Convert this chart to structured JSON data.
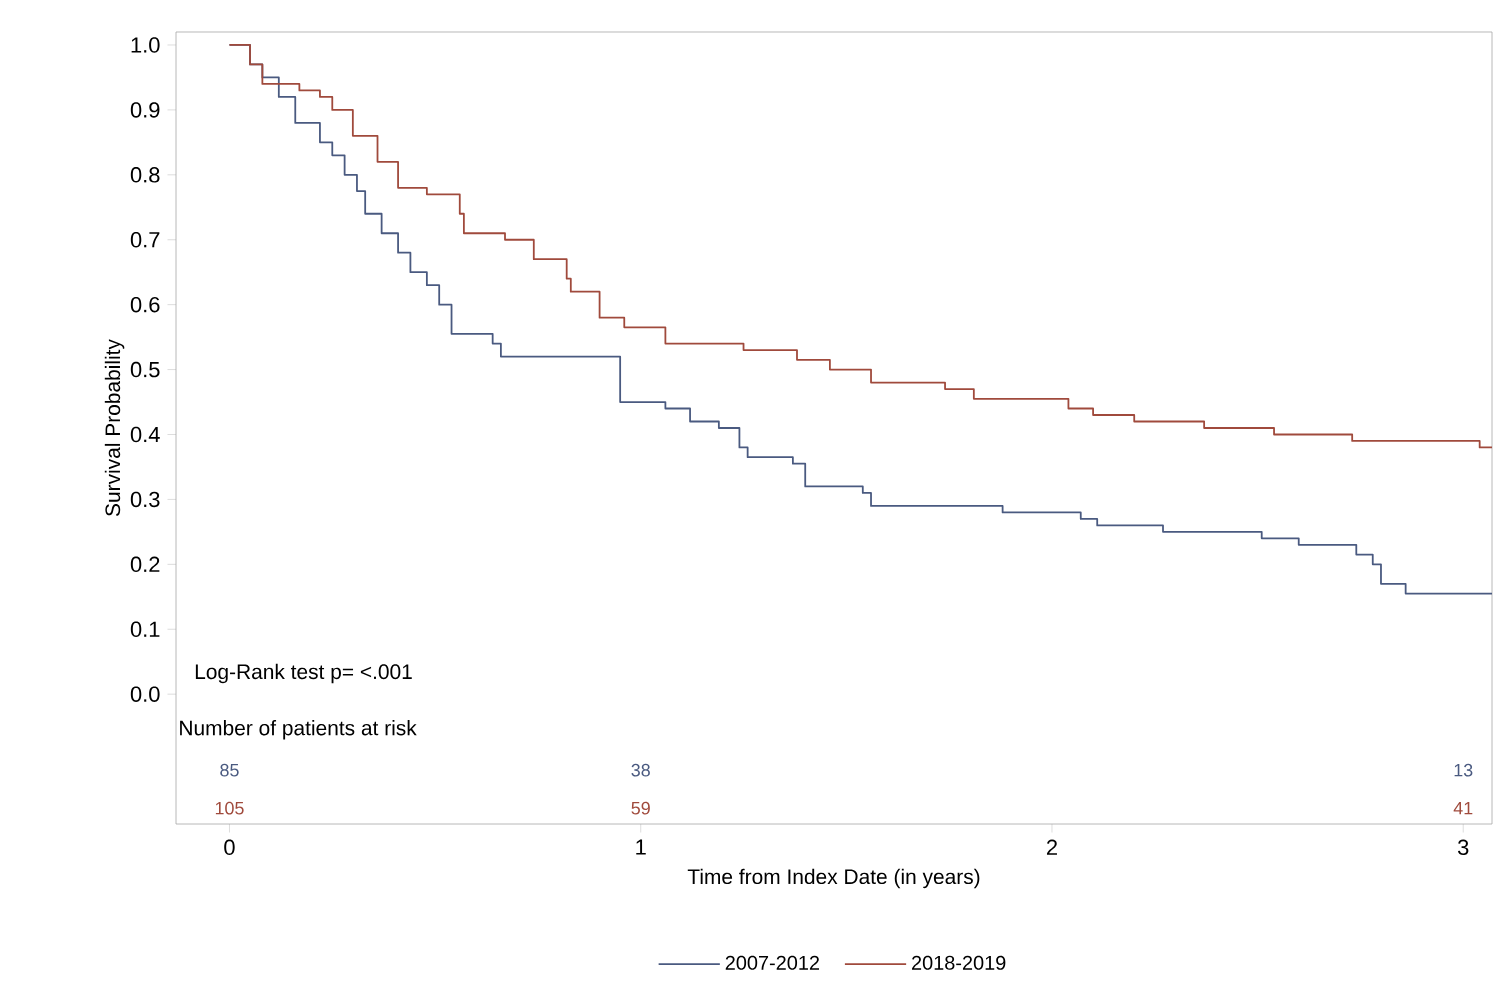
{
  "chart_data": {
    "type": "step",
    "xlabel": "Time from Index Date (in years)",
    "ylabel": "Survival Probability",
    "xlim": [
      -0.13,
      3.07
    ],
    "ylim": [
      -0.2,
      1.02
    ],
    "xticks": [
      0,
      1,
      2,
      3
    ],
    "yticks": [
      {
        "value": 0,
        "label": "0.0"
      },
      0.1,
      0.2,
      0.3,
      0.4,
      0.5,
      0.6,
      0.7,
      0.8,
      0.9,
      {
        "value": 1,
        "label": "1.0"
      }
    ],
    "grid": false,
    "legend": "bottom",
    "marker": "none",
    "line_style": "solid",
    "series": [
      {
        "name": "2007-2012",
        "color": "#4a5a80",
        "x": [
          0,
          0.05,
          0.08,
          0.12,
          0.16,
          0.22,
          0.25,
          0.28,
          0.31,
          0.33,
          0.37,
          0.41,
          0.44,
          0.48,
          0.51,
          0.54,
          0.64,
          0.66,
          0.95,
          1.06,
          1.12,
          1.19,
          1.24,
          1.26,
          1.37,
          1.4,
          1.54,
          1.56,
          1.88,
          2.07,
          2.11,
          2.27,
          2.51,
          2.6,
          2.74,
          2.78,
          2.8,
          2.86,
          3.07
        ],
        "values": [
          1.0,
          0.97,
          0.95,
          0.92,
          0.88,
          0.85,
          0.83,
          0.8,
          0.775,
          0.74,
          0.71,
          0.68,
          0.65,
          0.63,
          0.6,
          0.555,
          0.54,
          0.52,
          0.45,
          0.44,
          0.42,
          0.41,
          0.38,
          0.365,
          0.355,
          0.32,
          0.31,
          0.29,
          0.28,
          0.27,
          0.26,
          0.25,
          0.24,
          0.23,
          0.215,
          0.2,
          0.17,
          0.155,
          0.155
        ]
      },
      {
        "name": "2018-2019",
        "color": "#a04a3c",
        "x": [
          0,
          0.05,
          0.08,
          0.17,
          0.22,
          0.25,
          0.3,
          0.36,
          0.41,
          0.48,
          0.56,
          0.57,
          0.67,
          0.74,
          0.82,
          0.83,
          0.9,
          0.96,
          1.06,
          1.25,
          1.38,
          1.46,
          1.56,
          1.74,
          1.81,
          2.04,
          2.1,
          2.2,
          2.37,
          2.54,
          2.73,
          3.04,
          3.07
        ],
        "values": [
          1.0,
          0.97,
          0.94,
          0.93,
          0.92,
          0.9,
          0.86,
          0.82,
          0.78,
          0.77,
          0.74,
          0.71,
          0.7,
          0.67,
          0.64,
          0.62,
          0.58,
          0.565,
          0.54,
          0.53,
          0.515,
          0.5,
          0.48,
          0.47,
          0.455,
          0.44,
          0.43,
          0.42,
          0.41,
          0.4,
          0.39,
          0.38,
          0.38
        ]
      }
    ],
    "annotations": [
      "Log-Rank test p= <.001",
      "Number of patients at risk",
      "85",
      "38",
      "13",
      "105",
      "59",
      "41"
    ]
  }
}
